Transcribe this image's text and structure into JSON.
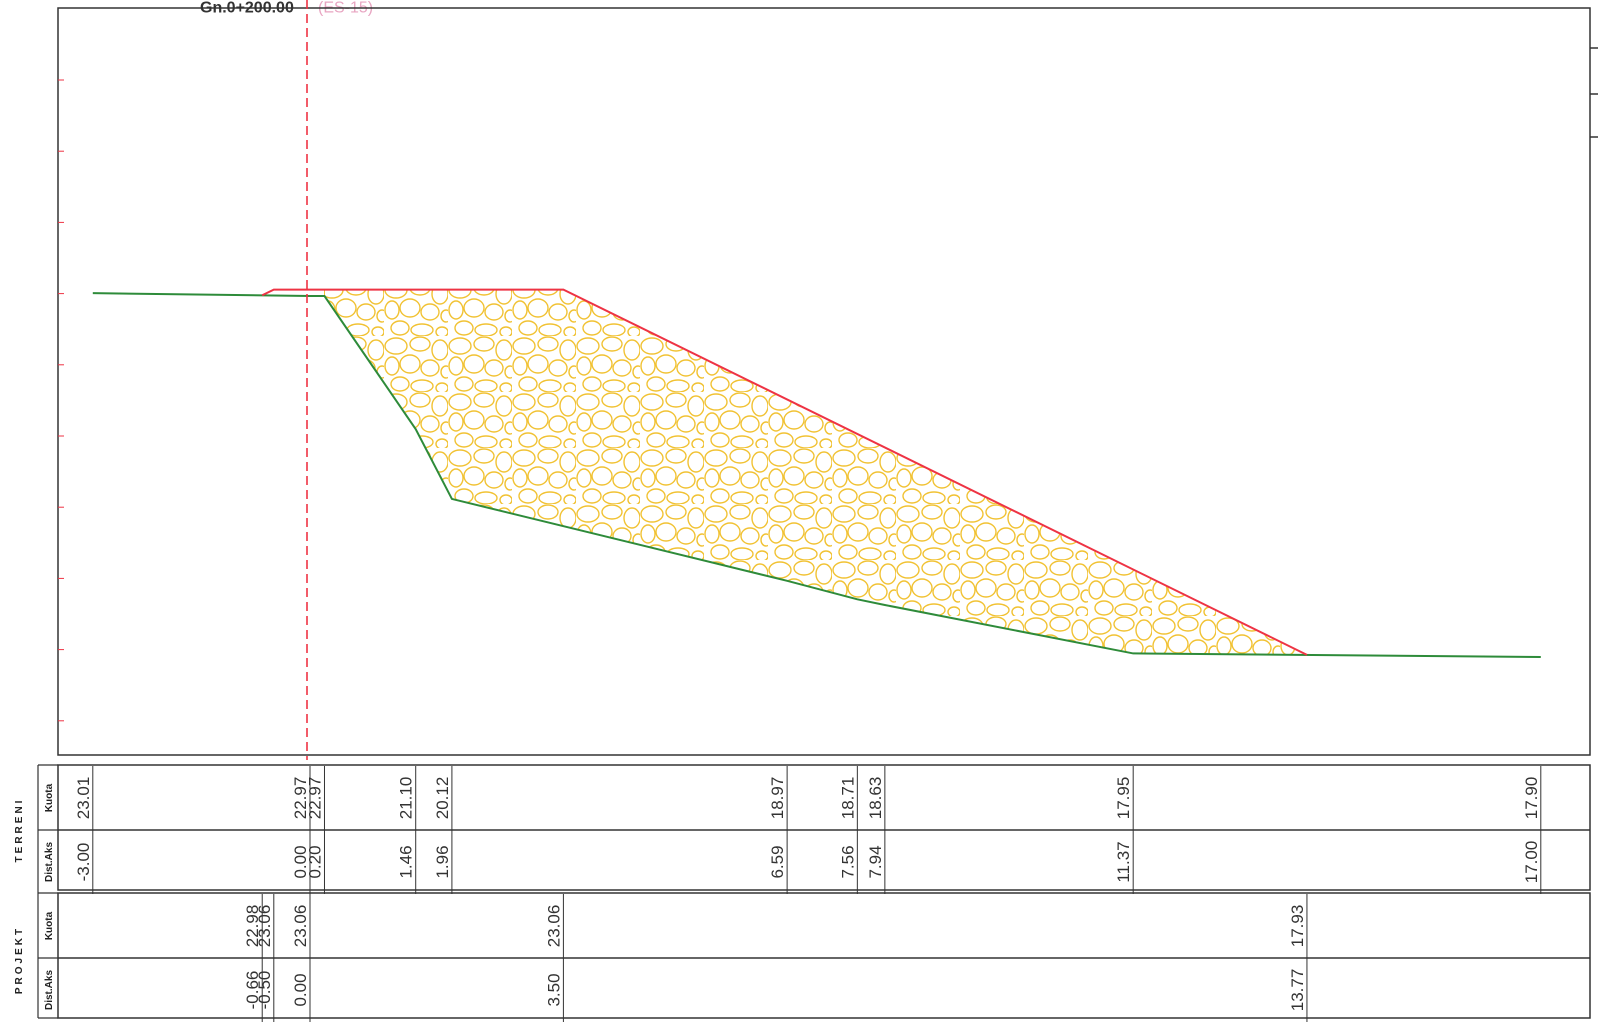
{
  "title": {
    "station": "Gn.0+200.00",
    "note": "(ES-15)"
  },
  "colors": {
    "terrain_line": "#2e8b3a",
    "project_line": "#ee3344",
    "fill_pattern": "#f1c233",
    "axis_line": "#ee3344",
    "frame": "#333333"
  },
  "groups": {
    "terreni": "TERRENI",
    "projekt": "PROJEKT"
  },
  "row_labels": {
    "kuota": "Kuota",
    "dist": "Dist.Aks"
  },
  "terreni": [
    {
      "dist": "-3.00",
      "kuota": "23.01"
    },
    {
      "dist": "0.00",
      "kuota": "22.97"
    },
    {
      "dist": "0.20",
      "kuota": "22.97"
    },
    {
      "dist": "1.46",
      "kuota": "21.10"
    },
    {
      "dist": "1.96",
      "kuota": "20.12"
    },
    {
      "dist": "6.59",
      "kuota": "18.97"
    },
    {
      "dist": "7.56",
      "kuota": "18.71"
    },
    {
      "dist": "7.94",
      "kuota": "18.63"
    },
    {
      "dist": "11.37",
      "kuota": "17.95"
    },
    {
      "dist": "17.00",
      "kuota": "17.90"
    }
  ],
  "projekt": [
    {
      "dist": "-0.66",
      "kuota": "22.98"
    },
    {
      "dist": "-0.50",
      "kuota": "23.06"
    },
    {
      "dist": "0.00",
      "kuota": "23.06"
    },
    {
      "dist": "3.50",
      "kuota": "23.06"
    },
    {
      "dist": "13.77",
      "kuota": "17.93"
    }
  ]
}
